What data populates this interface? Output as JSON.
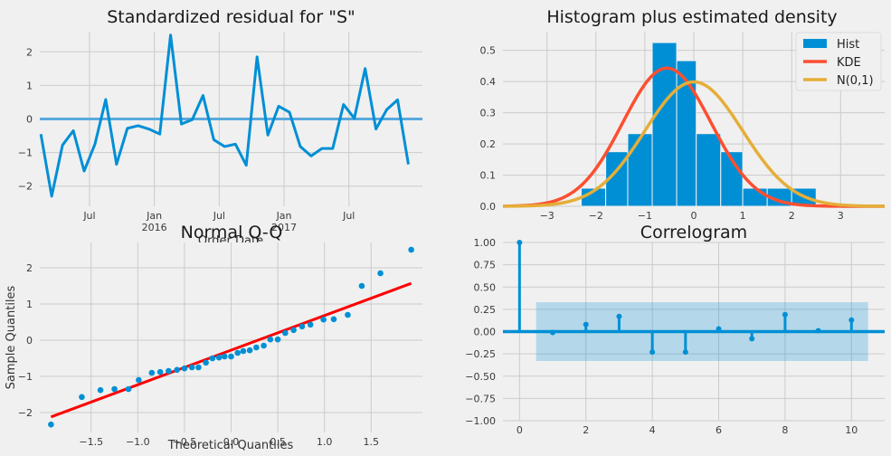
{
  "chart_data": [
    {
      "id": "resid",
      "type": "line",
      "title": "Standardized residual for \"S\"",
      "xlabel": "Order Date",
      "x_tick_labels": [
        {
          "label": "Jul",
          "sub": ""
        },
        {
          "label": "Jan",
          "sub": "2016"
        },
        {
          "label": "Jul",
          "sub": ""
        },
        {
          "label": "Jan",
          "sub": "2017"
        },
        {
          "label": "Jul",
          "sub": ""
        }
      ],
      "x_tick_index": [
        4.5,
        10.5,
        16.5,
        22.5,
        28.5
      ],
      "xlim": [
        -0.1,
        35.3
      ],
      "ylim": [
        -2.6,
        2.6
      ],
      "yticks": [
        -2,
        -1,
        0,
        1,
        2
      ],
      "y_tick_labels": [
        "−2",
        "−1",
        "0",
        "1",
        "2"
      ],
      "values": [
        -0.45,
        -2.3,
        -0.78,
        -0.35,
        -1.55,
        -0.75,
        0.58,
        -1.35,
        -0.28,
        -0.2,
        -0.3,
        -0.45,
        2.5,
        -0.15,
        -0.02,
        0.7,
        -0.62,
        -0.82,
        -0.75,
        -1.38,
        1.85,
        -0.48,
        0.38,
        0.2,
        -0.82,
        -1.1,
        -0.88,
        -0.88,
        0.43,
        0.02,
        1.5,
        -0.3,
        0.28,
        0.57,
        -1.35
      ],
      "hline": 0,
      "series_color": "#008fd5",
      "hline_color": "#5aa9dd"
    },
    {
      "id": "hist",
      "type": "bar",
      "title": "Histogram plus estimated density",
      "bins": [
        {
          "x0": -2.3,
          "x1": -1.8,
          "h": 0.058
        },
        {
          "x0": -1.8,
          "x1": -1.35,
          "h": 0.175
        },
        {
          "x0": -1.35,
          "x1": -0.85,
          "h": 0.233
        },
        {
          "x0": -0.85,
          "x1": -0.35,
          "h": 0.525
        },
        {
          "x0": -0.35,
          "x1": 0.05,
          "h": 0.467
        },
        {
          "x0": 0.05,
          "x1": 0.55,
          "h": 0.233
        },
        {
          "x0": 0.55,
          "x1": 1.0,
          "h": 0.175
        },
        {
          "x0": 1.0,
          "x1": 1.5,
          "h": 0.058
        },
        {
          "x0": 1.5,
          "x1": 2.0,
          "h": 0.058
        },
        {
          "x0": 2.0,
          "x1": 2.5,
          "h": 0.058
        }
      ],
      "kde": {
        "mean": -0.55,
        "sd": 0.9
      },
      "normal": {
        "mean": 0,
        "sd": 1
      },
      "xlim": [
        -3.9,
        3.9
      ],
      "ylim": [
        0,
        0.56
      ],
      "xticks": [
        -3,
        -2,
        -1,
        0,
        1,
        2,
        3
      ],
      "x_tick_labels": [
        "−3",
        "−2",
        "−1",
        "0",
        "1",
        "2",
        "3"
      ],
      "yticks": [
        0,
        0.1,
        0.2,
        0.3,
        0.4,
        0.5
      ],
      "y_tick_labels": [
        "0.0",
        "0.1",
        "0.2",
        "0.3",
        "0.4",
        "0.5"
      ],
      "legend": [
        {
          "name": "Hist",
          "color": "#008fd5",
          "kind": "patch"
        },
        {
          "name": "KDE",
          "color": "#fc4f30",
          "kind": "line"
        },
        {
          "name": "N(0,1)",
          "color": "#e5ae38",
          "kind": "line"
        }
      ],
      "legend_position": "top-right"
    },
    {
      "id": "qq",
      "type": "scatter",
      "title": "Normal Q-Q",
      "xlabel": "Theoretical Quantiles",
      "ylabel": "Sample Quantiles",
      "points": [
        [
          -1.93,
          -2.33
        ],
        [
          -1.6,
          -1.57
        ],
        [
          -1.4,
          -1.38
        ],
        [
          -1.25,
          -1.35
        ],
        [
          -1.1,
          -1.35
        ],
        [
          -0.99,
          -1.1
        ],
        [
          -0.85,
          -0.9
        ],
        [
          -0.76,
          -0.88
        ],
        [
          -0.67,
          -0.85
        ],
        [
          -0.58,
          -0.82
        ],
        [
          -0.5,
          -0.78
        ],
        [
          -0.42,
          -0.75
        ],
        [
          -0.35,
          -0.75
        ],
        [
          -0.27,
          -0.62
        ],
        [
          -0.2,
          -0.5
        ],
        [
          -0.13,
          -0.48
        ],
        [
          -0.07,
          -0.45
        ],
        [
          0,
          -0.45
        ],
        [
          0.07,
          -0.35
        ],
        [
          0.13,
          -0.3
        ],
        [
          0.2,
          -0.28
        ],
        [
          0.27,
          -0.2
        ],
        [
          0.35,
          -0.15
        ],
        [
          0.42,
          0.02
        ],
        [
          0.5,
          0.02
        ],
        [
          0.58,
          0.2
        ],
        [
          0.67,
          0.28
        ],
        [
          0.76,
          0.38
        ],
        [
          0.85,
          0.43
        ],
        [
          0.99,
          0.57
        ],
        [
          1.1,
          0.58
        ],
        [
          1.25,
          0.7
        ],
        [
          1.4,
          1.5
        ],
        [
          1.6,
          1.85
        ],
        [
          1.93,
          2.5
        ]
      ],
      "line": {
        "x": [
          -1.93,
          1.93
        ],
        "y": [
          -2.12,
          1.57
        ]
      },
      "xlim": [
        -2.05,
        2.05
      ],
      "ylim": [
        -2.55,
        2.7
      ],
      "xticks": [
        -1.5,
        -1.0,
        -0.5,
        0,
        0.5,
        1.0,
        1.5
      ],
      "x_tick_labels": [
        "−1.5",
        "−1.0",
        "−0.5",
        "0.0",
        "0.5",
        "1.0",
        "1.5"
      ],
      "yticks": [
        -2,
        -1,
        0,
        1,
        2
      ],
      "y_tick_labels": [
        "−2",
        "−1",
        "0",
        "1",
        "2"
      ],
      "point_color": "#008fd5",
      "line_color": "#ff0000"
    },
    {
      "id": "acf",
      "type": "scatter",
      "title": "Correlogram",
      "lags": [
        0,
        1,
        2,
        3,
        4,
        5,
        6,
        7,
        8,
        9,
        10
      ],
      "values": [
        1.0,
        -0.01,
        0.08,
        0.17,
        -0.23,
        -0.23,
        0.03,
        -0.08,
        0.19,
        0.01,
        0.13
      ],
      "confint": [
        -0.33,
        0.33
      ],
      "conf_x": [
        0.5,
        10.5
      ],
      "xlim": [
        -0.5,
        11.0
      ],
      "ylim": [
        -1.0,
        1.0
      ],
      "xticks": [
        0,
        2,
        4,
        6,
        8,
        10
      ],
      "x_tick_labels": [
        "0",
        "2",
        "4",
        "6",
        "8",
        "10"
      ],
      "yticks": [
        -1.0,
        -0.75,
        -0.5,
        -0.25,
        0,
        0.25,
        0.5,
        0.75,
        1.0
      ],
      "y_tick_labels": [
        "−1.00",
        "−0.75",
        "−0.50",
        "−0.25",
        "0.00",
        "0.25",
        "0.50",
        "0.75",
        "1.00"
      ],
      "stem_color": "#008fd5"
    }
  ]
}
